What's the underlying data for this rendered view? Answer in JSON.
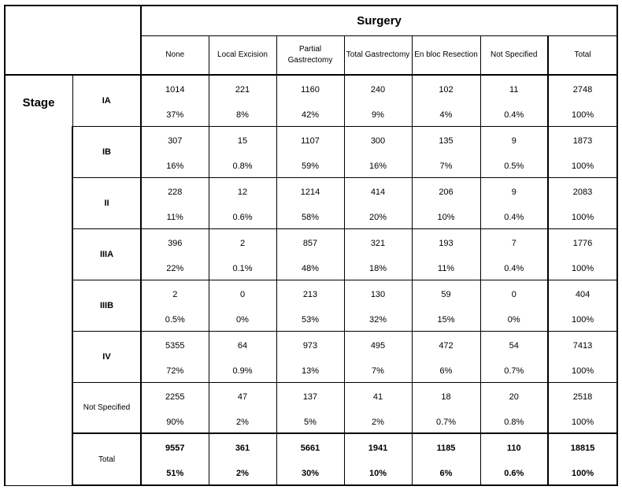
{
  "group_label": "Stage",
  "surgery_label": "Surgery",
  "columns": [
    "None",
    "Local Excision",
    "Partial Gastrectomy",
    "Total Gastrectomy",
    "En bloc Resection",
    "Not Specified",
    "Total"
  ],
  "rows": [
    {
      "stage": "IA",
      "counts": [
        "1014",
        "221",
        "1160",
        "240",
        "102",
        "11",
        "2748"
      ],
      "pcts": [
        "37%",
        "8%",
        "42%",
        "9%",
        "4%",
        "0.4%",
        "100%"
      ]
    },
    {
      "stage": "IB",
      "counts": [
        "307",
        "15",
        "1107",
        "300",
        "135",
        "9",
        "1873"
      ],
      "pcts": [
        "16%",
        "0.8%",
        "59%",
        "16%",
        "7%",
        "0.5%",
        "100%"
      ]
    },
    {
      "stage": "II",
      "counts": [
        "228",
        "12",
        "1214",
        "414",
        "206",
        "9",
        "2083"
      ],
      "pcts": [
        "11%",
        "0.6%",
        "58%",
        "20%",
        "10%",
        "0.4%",
        "100%"
      ]
    },
    {
      "stage": "IIIA",
      "counts": [
        "396",
        "2",
        "857",
        "321",
        "193",
        "7",
        "1776"
      ],
      "pcts": [
        "22%",
        "0.1%",
        "48%",
        "18%",
        "11%",
        "0.4%",
        "100%"
      ]
    },
    {
      "stage": "IIIB",
      "counts": [
        "2",
        "0",
        "213",
        "130",
        "59",
        "0",
        "404"
      ],
      "pcts": [
        "0.5%",
        "0%",
        "53%",
        "32%",
        "15%",
        "0%",
        "100%"
      ]
    },
    {
      "stage": "IV",
      "counts": [
        "5355",
        "64",
        "973",
        "495",
        "472",
        "54",
        "7413"
      ],
      "pcts": [
        "72%",
        "0.9%",
        "13%",
        "7%",
        "6%",
        "0.7%",
        "100%"
      ]
    },
    {
      "stage": "Not Specified",
      "counts": [
        "2255",
        "47",
        "137",
        "41",
        "18",
        "20",
        "2518"
      ],
      "pcts": [
        "90%",
        "2%",
        "5%",
        "2%",
        "0.7%",
        "0.8%",
        "100%"
      ]
    },
    {
      "stage": "Total",
      "counts": [
        "9557",
        "361",
        "5661",
        "1941",
        "1185",
        "110",
        "18815"
      ],
      "pcts": [
        "51%",
        "2%",
        "30%",
        "10%",
        "6%",
        "0.6%",
        "100%"
      ]
    }
  ]
}
